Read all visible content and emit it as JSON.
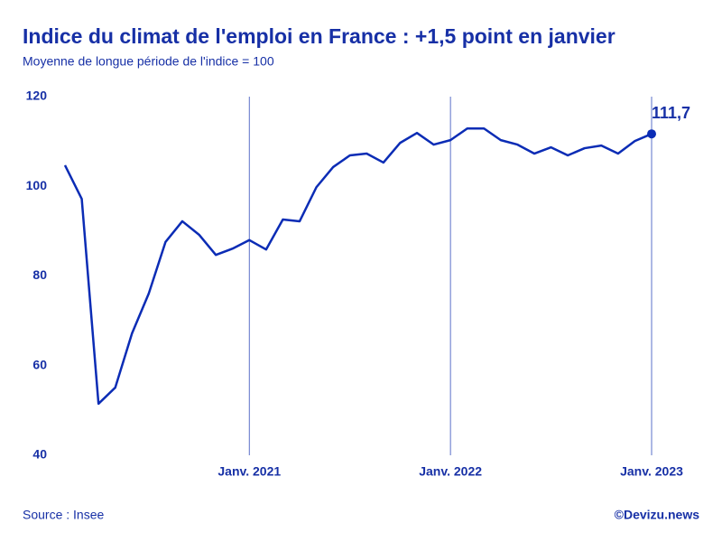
{
  "chart_data": {
    "type": "line",
    "title": "Indice du climat de l'emploi en France : +1,5 point en janvier",
    "subtitle": "Moyenne de longue période de l'indice = 100",
    "source": "Source : Insee",
    "credit": "©Devizu.news",
    "categories": [
      null,
      null,
      null,
      null,
      null,
      null,
      null,
      null,
      null,
      null,
      null,
      "Janv. 2021",
      null,
      null,
      null,
      null,
      null,
      null,
      null,
      null,
      null,
      null,
      null,
      "Janv. 2022",
      null,
      null,
      null,
      null,
      null,
      null,
      null,
      null,
      null,
      null,
      null,
      "Janv. 2023"
    ],
    "values": [
      104.7,
      97.2,
      51.5,
      55.1,
      67.2,
      76.1,
      87.6,
      92.2,
      89.2,
      84.7,
      86.1,
      88.0,
      85.9,
      92.6,
      92.2,
      99.8,
      104.3,
      106.9,
      107.3,
      105.3,
      109.7,
      111.9,
      109.3,
      110.3,
      112.9,
      112.9,
      110.3,
      109.3,
      107.3,
      108.7,
      106.9,
      108.5,
      109.1,
      107.3,
      110.1,
      111.7
    ],
    "value_labels": [
      null,
      null,
      null,
      null,
      null,
      null,
      null,
      null,
      null,
      null,
      null,
      null,
      null,
      null,
      null,
      null,
      null,
      null,
      null,
      null,
      null,
      null,
      null,
      null,
      null,
      null,
      null,
      null,
      null,
      null,
      null,
      null,
      null,
      null,
      null,
      "111,7"
    ],
    "color": "#0b2cb5",
    "ylim": [
      40,
      120
    ],
    "yticks": [
      40,
      60,
      80,
      100,
      120
    ]
  }
}
